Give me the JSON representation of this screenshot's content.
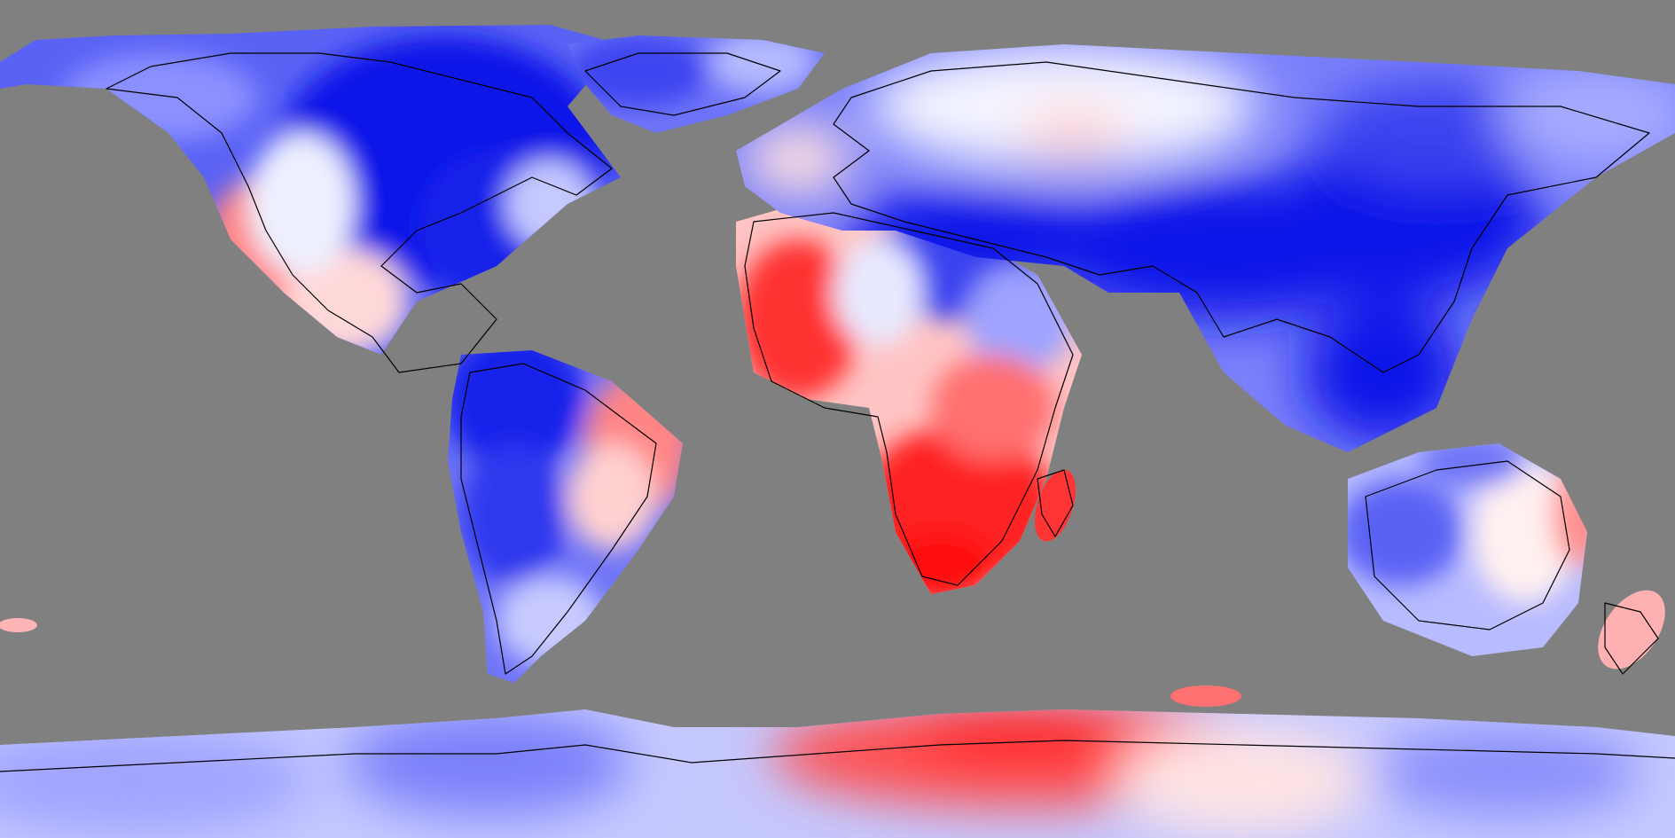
{
  "map": {
    "projection": "equirectangular",
    "extent": {
      "lon": [
        -180,
        180
      ],
      "lat": [
        -90,
        90
      ]
    },
    "ocean_color": "#808080",
    "coastline_color": "#000000",
    "colormap": {
      "type": "diverging",
      "negative": "#0000ff",
      "neutral": "#ffffff",
      "positive": "#ff0000",
      "levels": 12
    },
    "regions": [
      {
        "name": "alaska-canada",
        "value": -0.75
      },
      {
        "name": "central-canada-hudson",
        "value": -1.0
      },
      {
        "name": "eastern-north-america",
        "value": -0.95
      },
      {
        "name": "us-southwest",
        "value": 0.45
      },
      {
        "name": "mexico",
        "value": 0.3
      },
      {
        "name": "greenland",
        "value": -0.55
      },
      {
        "name": "northwest-south-america",
        "value": -0.85
      },
      {
        "name": "amazon-west",
        "value": -0.7
      },
      {
        "name": "brazil-east",
        "value": 0.55
      },
      {
        "name": "patagonia",
        "value": -0.6
      },
      {
        "name": "west-africa",
        "value": 0.85
      },
      {
        "name": "sahel",
        "value": 0.1
      },
      {
        "name": "east-africa",
        "value": -0.3
      },
      {
        "name": "southern-africa",
        "value": 0.95
      },
      {
        "name": "madagascar",
        "value": 0.9
      },
      {
        "name": "scandinavia-russia-north",
        "value": 0.0
      },
      {
        "name": "mediterranean-middle-east",
        "value": -0.95
      },
      {
        "name": "central-asia",
        "value": -0.95
      },
      {
        "name": "india",
        "value": -1.0
      },
      {
        "name": "east-asia",
        "value": -0.95
      },
      {
        "name": "siberia-east",
        "value": -0.7
      },
      {
        "name": "southeast-asia",
        "value": -1.0
      },
      {
        "name": "australia-west",
        "value": -0.55
      },
      {
        "name": "australia-east",
        "value": 0.25
      },
      {
        "name": "new-zealand",
        "value": 0.5
      },
      {
        "name": "antarctica-west",
        "value": -0.45
      },
      {
        "name": "antarctica-east-africa-sector",
        "value": 0.85
      },
      {
        "name": "antarctica-indian-sector",
        "value": -0.35
      }
    ]
  }
}
